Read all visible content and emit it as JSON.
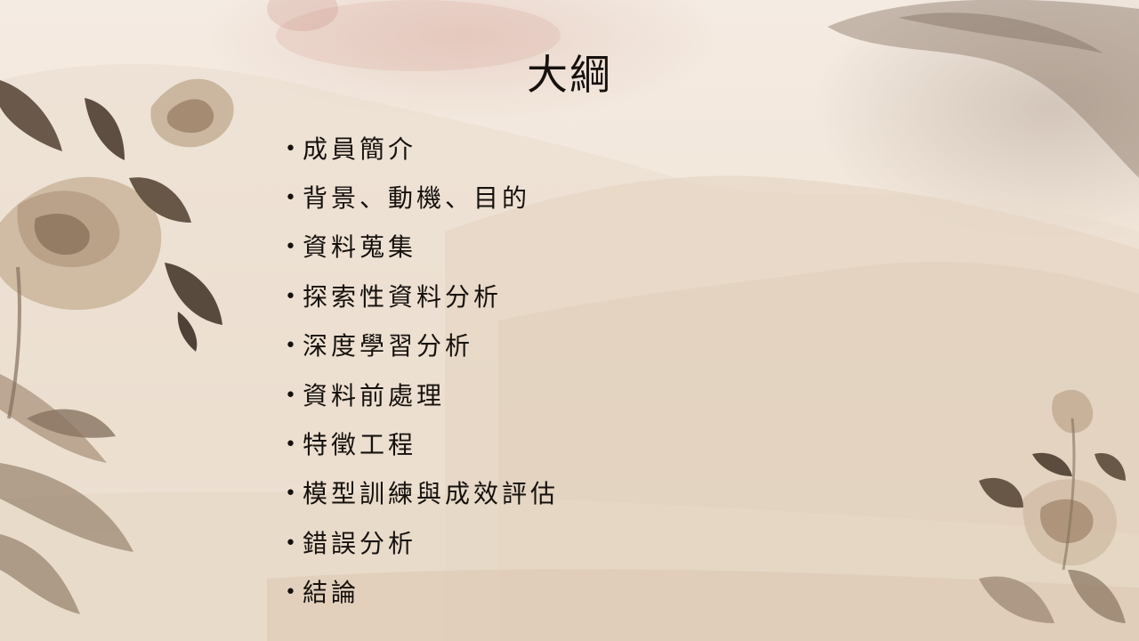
{
  "slide": {
    "title": "大綱",
    "items": [
      "成員簡介",
      "背景、動機、目的",
      "資料蒐集",
      "探索性資料分析",
      "深度學習分析",
      "資料前處理",
      "特徵工程",
      "模型訓練與成效評估",
      "錯誤分析",
      "結論"
    ],
    "bullet": "•"
  },
  "colors": {
    "text": "#16110d",
    "background": "#f2e6d9",
    "ink": "#5a4a3c"
  }
}
